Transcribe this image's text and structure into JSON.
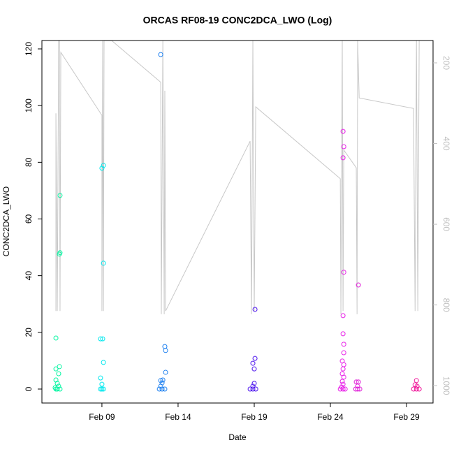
{
  "chart_data": {
    "type": "scatter",
    "title": "ORCAS RF08-19 CONC2DCA_LWO (Log)",
    "x_label": "Date",
    "y_label": "CONC2DCA_LWO",
    "xlim": [
      5.06,
      30.74
    ],
    "xticks": [
      {
        "value": 9,
        "label": "Feb 09"
      },
      {
        "value": 14,
        "label": "Feb 14"
      },
      {
        "value": 19,
        "label": "Feb 19"
      },
      {
        "value": 24,
        "label": "Feb 24"
      },
      {
        "value": 29,
        "label": "Feb 29"
      }
    ],
    "ylim": [
      -4.93,
      122.96
    ],
    "yticks": [
      0,
      20,
      40,
      60,
      80,
      100,
      120
    ],
    "y2lim": [
      1043,
      144.6
    ],
    "y2ticks": [
      200,
      400,
      600,
      800,
      1000
    ],
    "y2_color": "#bfbfbf",
    "series": [
      {
        "type": "line",
        "axis": "y2",
        "color": "#c8c8c8",
        "x": [
          5.98,
          5.98,
          6.07,
          6.16,
          6.21,
          6.25,
          6.3,
          9.0,
          9.0,
          9.05,
          9.1,
          9.14,
          9.65,
          12.86,
          12.9,
          13.0,
          13.09,
          13.13,
          13.18,
          18.73,
          18.82,
          18.91,
          19.0,
          19.1,
          24.65,
          24.69,
          24.78,
          24.83,
          24.88,
          25.7,
          25.75,
          25.79,
          25.89,
          29.46,
          29.56,
          29.65,
          29.74,
          29.83
        ],
        "values": [
          815,
          325,
          815,
          145,
          145,
          815,
          174,
          330,
          815,
          145,
          815,
          145,
          145,
          248,
          823,
          145,
          823,
          269,
          815,
          394,
          823,
          145,
          815,
          309,
          487,
          823,
          145,
          815,
          416,
          460,
          823,
          145,
          287,
          313,
          815,
          145,
          815,
          145
        ]
      },
      {
        "type": "points",
        "color": "#00f5a0",
        "x": [
          5.98,
          6.25,
          6.25,
          6.21,
          5.98,
          6.21,
          6.16,
          5.98,
          6.07,
          6.16,
          5.98,
          6.07,
          6.25,
          5.93
        ],
        "values": [
          18.0,
          68.3,
          48.1,
          47.6,
          7.1,
          7.9,
          5.4,
          3.2,
          2.0,
          1.0,
          0,
          0,
          0,
          0.5
        ]
      },
      {
        "type": "points",
        "color": "#00e8ee",
        "x": [
          9.0,
          9.1,
          9.1,
          8.91,
          9.05,
          9.1,
          8.91,
          9.0,
          9.0,
          9.1,
          8.91
        ],
        "values": [
          77.9,
          78.9,
          44.4,
          17.7,
          17.7,
          9.4,
          3.9,
          1.7,
          0,
          0,
          0
        ]
      },
      {
        "type": "points",
        "color": "#1e80f0",
        "x": [
          12.86,
          13.13,
          13.18,
          13.18,
          12.86,
          13.0,
          12.95,
          12.86,
          12.77,
          12.95,
          13.13
        ],
        "values": [
          118.0,
          15.0,
          13.6,
          5.9,
          3.0,
          3.2,
          2.2,
          1.0,
          0,
          0,
          0
        ]
      },
      {
        "type": "points",
        "color": "#4a10ee",
        "x": [
          19.05,
          19.05,
          18.91,
          19.0,
          19.0,
          18.91,
          18.73,
          18.91,
          19.1
        ],
        "values": [
          28.1,
          10.8,
          9.1,
          7.1,
          2.0,
          1.0,
          0,
          0,
          0
        ]
      },
      {
        "type": "points",
        "color": "#e81ee8",
        "x": [
          24.83,
          24.88,
          24.83,
          24.88,
          24.83,
          24.83,
          24.88,
          24.88,
          24.78,
          24.88,
          24.83,
          24.78,
          24.88,
          24.78,
          24.83,
          24.74,
          24.65,
          24.83,
          24.97
        ],
        "values": [
          90.9,
          85.5,
          81.6,
          41.2,
          25.9,
          19.5,
          15.8,
          12.8,
          9.9,
          8.6,
          7.1,
          5.4,
          4.2,
          2.7,
          1.7,
          0.7,
          0,
          0,
          0
        ]
      },
      {
        "type": "points",
        "color": "#e020d8",
        "x": [
          25.84,
          25.7,
          25.84,
          25.79,
          25.66,
          25.79,
          25.93
        ],
        "values": [
          36.7,
          2.5,
          2.5,
          1.0,
          0,
          0,
          0
        ]
      },
      {
        "type": "points",
        "color": "#f0189a",
        "x": [
          29.65,
          29.56,
          29.69,
          29.46,
          29.65,
          29.83
        ],
        "values": [
          3.0,
          1.5,
          1.0,
          0,
          0,
          0
        ]
      }
    ]
  }
}
